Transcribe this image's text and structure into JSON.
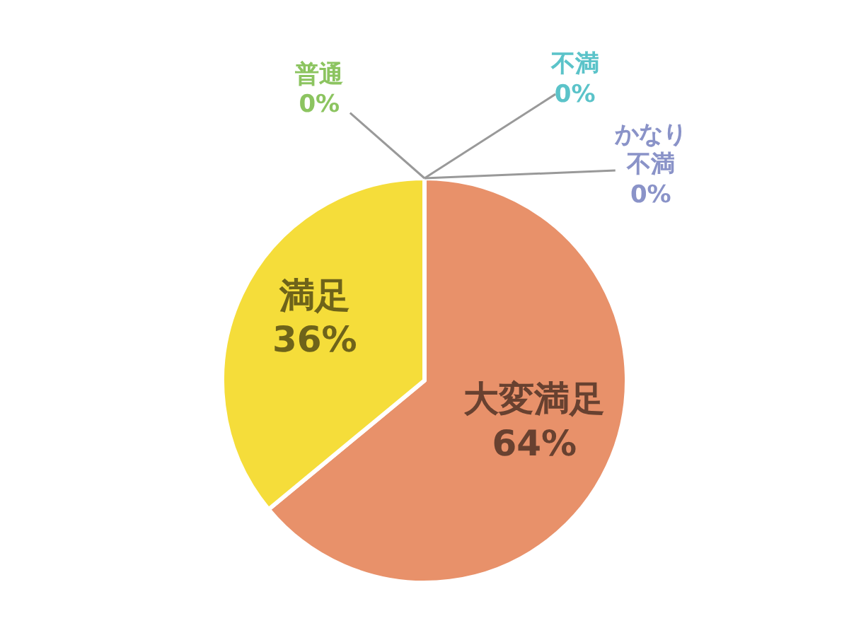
{
  "chart_data": {
    "type": "pie",
    "categories": [
      "大変満足",
      "満足",
      "普通",
      "不満",
      "かなり不満"
    ],
    "values": [
      64,
      36,
      0,
      0,
      0
    ],
    "value_labels": [
      "64%",
      "36%",
      "0%",
      "0%",
      "0%"
    ],
    "colors": [
      "#e8916a",
      "#f5dd3a",
      "#8cc460",
      "#5bc3c9",
      "#8a93c8"
    ]
  }
}
